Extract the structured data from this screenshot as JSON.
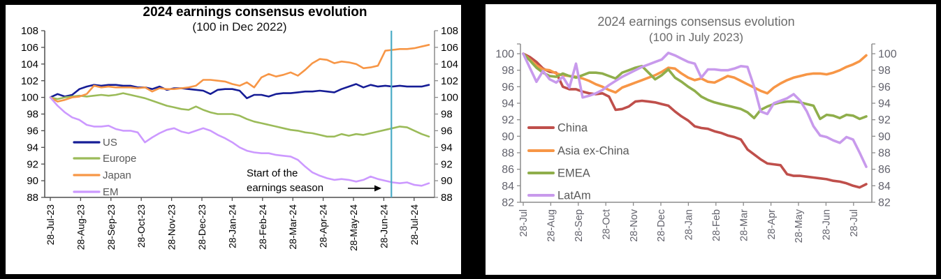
{
  "page": {
    "background": "#000000",
    "panel_background": "#ffffff"
  },
  "chart_data": [
    {
      "type": "line",
      "panel": "left",
      "title": "2024 earnings consensus evolution",
      "subtitle": "(100 in Dec 2022)",
      "title_color": "#000000",
      "x_tick_labels": [
        "28-Jul-23",
        "28-Aug-23",
        "28-Sep-23",
        "28-Oct-23",
        "28-Nov-23",
        "28-Dec-23",
        "28-Jan-24",
        "28-Feb-24",
        "28-Mar-24",
        "28-Apr-24",
        "28-May-24",
        "28-Jun-24",
        "28-Jul-24"
      ],
      "ylim": [
        88,
        108
      ],
      "ytick_step": 2,
      "grid": false,
      "yaxis_sides": "both",
      "legend_position": "inside-left",
      "axis_color": "#4d4d4d",
      "right_axis_color": "#8c8c8c",
      "tick_label_color": "#000000",
      "legend_text_color": "#595959",
      "series": [
        {
          "name": "US",
          "color": "#161d96",
          "values": [
            100,
            100.4,
            100.1,
            100.3,
            101.0,
            101.3,
            101.5,
            101.4,
            101.5,
            101.5,
            101.4,
            101.4,
            101.2,
            101.2,
            101.0,
            101.3,
            100.9,
            101.1,
            101.1,
            101.0,
            100.9,
            100.8,
            100.4,
            100.9,
            101.0,
            101.0,
            100.8,
            99.9,
            100.3,
            100.3,
            100.1,
            100.4,
            100.5,
            100.5,
            100.6,
            100.7,
            100.7,
            100.8,
            100.7,
            100.6,
            101.0,
            101.3,
            101.6,
            101.2,
            101.5,
            101.3,
            101.4,
            101.3,
            101.4,
            101.3,
            101.3,
            101.3,
            101.5
          ]
        },
        {
          "name": "Europe",
          "color": "#9bbb59",
          "values": [
            100,
            99.8,
            100.0,
            100.1,
            100.2,
            100.1,
            100.2,
            100.3,
            100.2,
            100.3,
            100.5,
            100.3,
            100.1,
            99.9,
            99.6,
            99.3,
            99.0,
            98.8,
            98.6,
            98.5,
            98.9,
            98.5,
            98.2,
            98.0,
            98.0,
            98.0,
            97.8,
            97.4,
            97.1,
            96.9,
            96.7,
            96.5,
            96.3,
            96.1,
            96.0,
            95.8,
            95.7,
            95.5,
            95.3,
            95.3,
            95.6,
            95.4,
            95.6,
            95.5,
            95.7,
            95.9,
            96.1,
            96.3,
            96.5,
            96.4,
            96.0,
            95.6,
            95.3
          ]
        },
        {
          "name": "Japan",
          "color": "#f79646",
          "values": [
            100,
            99.5,
            99.7,
            100.0,
            100.1,
            100.4,
            101.4,
            101.2,
            101.3,
            101.2,
            101.2,
            101.2,
            101.1,
            101.2,
            100.7,
            101.1,
            101.0,
            101.0,
            101.1,
            101.2,
            101.4,
            102.1,
            102.1,
            102.0,
            101.9,
            101.6,
            101.4,
            101.8,
            101.2,
            102.4,
            102.8,
            102.5,
            102.7,
            103.0,
            102.6,
            103.3,
            104.1,
            104.6,
            104.5,
            104.1,
            104.3,
            104.2,
            104.0,
            103.5,
            103.6,
            103.8,
            105.6,
            105.7,
            105.8,
            105.8,
            105.9,
            106.1,
            106.3
          ]
        },
        {
          "name": "EM",
          "color": "#cc99ff",
          "values": [
            100,
            99.0,
            98.2,
            97.6,
            97.3,
            96.7,
            96.5,
            96.5,
            96.6,
            96.2,
            96.0,
            96.0,
            95.8,
            94.6,
            95.2,
            95.7,
            96.1,
            96.3,
            95.9,
            95.7,
            96.0,
            96.3,
            96.0,
            95.5,
            95.1,
            94.6,
            94.0,
            93.6,
            93.4,
            93.3,
            93.3,
            93.1,
            93.0,
            92.9,
            92.5,
            91.7,
            91.0,
            90.6,
            90.3,
            90.1,
            90.2,
            90.1,
            89.9,
            90.1,
            90.5,
            90.2,
            90.0,
            89.8,
            89.7,
            89.8,
            89.5,
            89.4,
            89.7
          ]
        }
      ],
      "vline": {
        "color": "#4bacc6",
        "at_month_index": 11.25
      },
      "annotation": {
        "lines": [
          "Start of the",
          "earnings season"
        ],
        "color": "#000000",
        "arrow": true
      }
    },
    {
      "type": "line",
      "panel": "right",
      "title": "2024 earnings consensus evolution",
      "subtitle": "(100 in July 2023)",
      "title_color": "#6b6b6b",
      "x_tick_labels": [
        "28-Jul",
        "28-Aug",
        "28-Sep",
        "28-Oct",
        "28-Nov",
        "28-Dec",
        "28-Jan",
        "28-Feb",
        "28-Mar",
        "28-Apr",
        "28-May",
        "28-Jun",
        "28-Jul"
      ],
      "ylim": [
        82,
        100
      ],
      "ytick_step": 2,
      "grid": false,
      "yaxis_sides": "both",
      "legend_position": "inside-left",
      "axis_color": "#8c8c8c",
      "right_axis_color": "#8c8c8c",
      "tick_label_color": "#63636d",
      "legend_text_color": "#595959",
      "series": [
        {
          "name": "China",
          "color": "#bf4f4b",
          "values": [
            100,
            99.6,
            99.0,
            98.2,
            97.8,
            97.7,
            96.0,
            95.7,
            95.7,
            95.4,
            95.2,
            95.1,
            95.2,
            94.8,
            93.2,
            93.3,
            93.6,
            94.2,
            94.3,
            94.2,
            94.1,
            93.9,
            93.7,
            93.0,
            92.4,
            91.9,
            91.2,
            91.0,
            90.9,
            90.6,
            90.4,
            90.1,
            89.9,
            89.6,
            88.4,
            87.8,
            87.2,
            86.7,
            86.6,
            86.5,
            85.4,
            85.2,
            85.2,
            85.1,
            85.0,
            84.9,
            84.8,
            84.6,
            84.5,
            84.3,
            84.0,
            83.8,
            84.2
          ]
        },
        {
          "name": "Asia ex-China",
          "color": "#f79646",
          "values": [
            100,
            99.3,
            98.6,
            98.1,
            98.0,
            97.6,
            97.4,
            97.3,
            97.2,
            97.0,
            96.7,
            96.3,
            96.0,
            95.6,
            95.3,
            95.9,
            96.2,
            96.5,
            96.8,
            97.1,
            97.4,
            97.8,
            98.3,
            98.2,
            97.6,
            97.1,
            96.8,
            97.0,
            96.6,
            96.5,
            96.9,
            97.3,
            97.1,
            96.7,
            96.3,
            95.9,
            95.5,
            95.2,
            95.9,
            96.4,
            96.8,
            97.1,
            97.3,
            97.5,
            97.6,
            97.6,
            97.5,
            97.7,
            98.0,
            98.4,
            98.7,
            99.1,
            99.8
          ]
        },
        {
          "name": "EMEA",
          "color": "#8fae4b",
          "values": [
            100,
            99.2,
            98.3,
            97.7,
            97.3,
            97.2,
            97.6,
            97.3,
            97.1,
            97.4,
            97.7,
            97.7,
            97.6,
            97.3,
            97.0,
            97.7,
            98.0,
            98.3,
            98.5,
            97.7,
            96.9,
            97.4,
            98.1,
            97.1,
            96.6,
            96.0,
            95.5,
            94.8,
            94.4,
            94.1,
            93.9,
            93.7,
            93.5,
            93.3,
            92.9,
            92.2,
            93.2,
            93.6,
            93.9,
            94.1,
            94.2,
            94.2,
            94.1,
            93.9,
            93.7,
            92.1,
            92.6,
            92.5,
            92.2,
            92.6,
            92.5,
            92.1,
            92.4
          ]
        },
        {
          "name": "LatAm",
          "color": "#c89aec",
          "values": [
            100,
            98.3,
            96.6,
            97.9,
            96.9,
            96.5,
            97.2,
            95.9,
            98.8,
            94.7,
            94.9,
            95.2,
            95.6,
            96.2,
            96.7,
            97.2,
            97.6,
            98.0,
            98.4,
            98.7,
            99.0,
            99.3,
            100.1,
            99.8,
            99.4,
            99.0,
            98.8,
            97.1,
            98.1,
            98.1,
            98.0,
            98.0,
            98.2,
            98.5,
            98.4,
            96.0,
            93.0,
            92.7,
            94.0,
            94.3,
            94.6,
            95.1,
            94.3,
            93.0,
            91.2,
            90.1,
            89.9,
            89.5,
            89.2,
            89.9,
            89.6,
            88.0,
            86.3
          ]
        }
      ]
    }
  ]
}
